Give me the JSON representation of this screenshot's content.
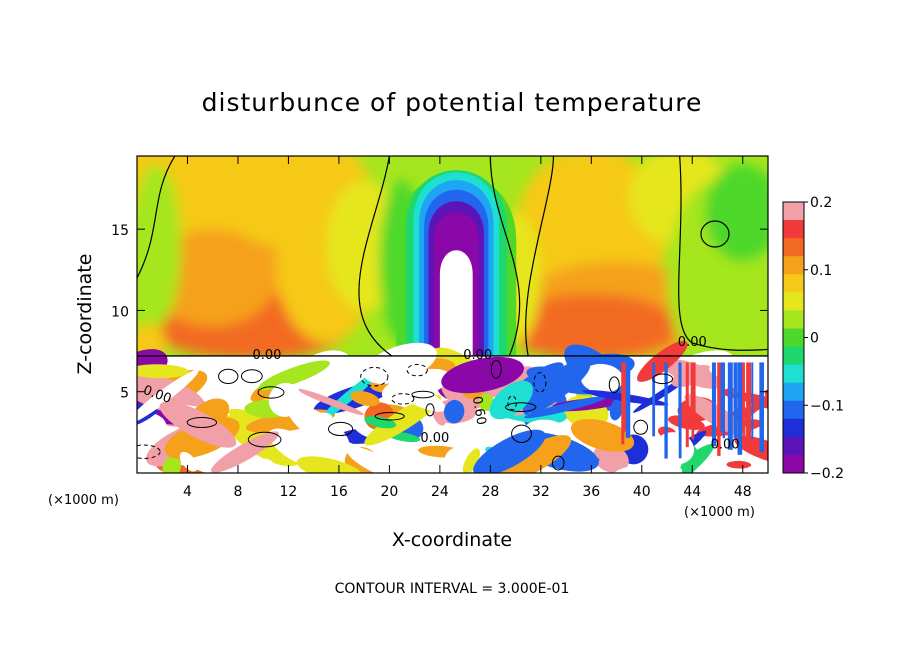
{
  "chart_data": {
    "type": "heatmap",
    "title": "disturbunce of potential temperature",
    "xlabel": "X-coordinate",
    "ylabel": "Z-coordinate",
    "x_unit": "(×1000 m)",
    "y_unit": "(×1000 m)",
    "xlim": [
      0,
      50
    ],
    "ylim": [
      0,
      19.5
    ],
    "x_ticks": [
      4,
      8,
      12,
      16,
      20,
      24,
      28,
      32,
      36,
      40,
      44,
      48
    ],
    "y_ticks": [
      5,
      10,
      15
    ],
    "colorbar": {
      "range": [
        -0.2,
        0.2
      ],
      "tick_labels": [
        "0.2",
        "0.1",
        "0",
        "−0.1",
        "−0.2"
      ],
      "tick_values": [
        0.2,
        0.1,
        0,
        -0.1,
        -0.2
      ],
      "colors": [
        "#f2a0a8",
        "#f23a3a",
        "#f26a22",
        "#f5a11c",
        "#f5c918",
        "#e6e61e",
        "#a6e61e",
        "#4ed82a",
        "#1ed86e",
        "#1ee0d2",
        "#1ea6f5",
        "#2266ee",
        "#1e2ed8",
        "#5a14b8",
        "#8a08a8"
      ]
    },
    "contour_interval": "CONTOUR INTERVAL = 3.000E-01",
    "contour_labels": [
      {
        "text": "0.00",
        "x": 10.3,
        "y": 7.0
      },
      {
        "text": "0.00",
        "x": 27.0,
        "y": 7.0
      },
      {
        "text": "0.00",
        "x": 44.0,
        "y": 7.8
      },
      {
        "text": "0.00",
        "x": 1.5,
        "y": 4.6
      },
      {
        "text": "0.00",
        "x": 46.6,
        "y": 1.5
      },
      {
        "text": "0.00",
        "x": 23.6,
        "y": 1.9
      },
      {
        "text": "0.60",
        "x": 26.8,
        "y": 3.8
      }
    ],
    "regions": [
      {
        "name": "upper layer",
        "x_range": [
          0,
          50
        ],
        "z_range": [
          7.2,
          19.5
        ],
        "description_value": 0.08
      },
      {
        "name": "cold plume",
        "center_x": 25.3,
        "top_z": 15.3,
        "min_value": -0.2
      },
      {
        "name": "lower turbulent layer",
        "x_range": [
          0,
          50
        ],
        "z_range": [
          0,
          7.2
        ]
      }
    ]
  }
}
